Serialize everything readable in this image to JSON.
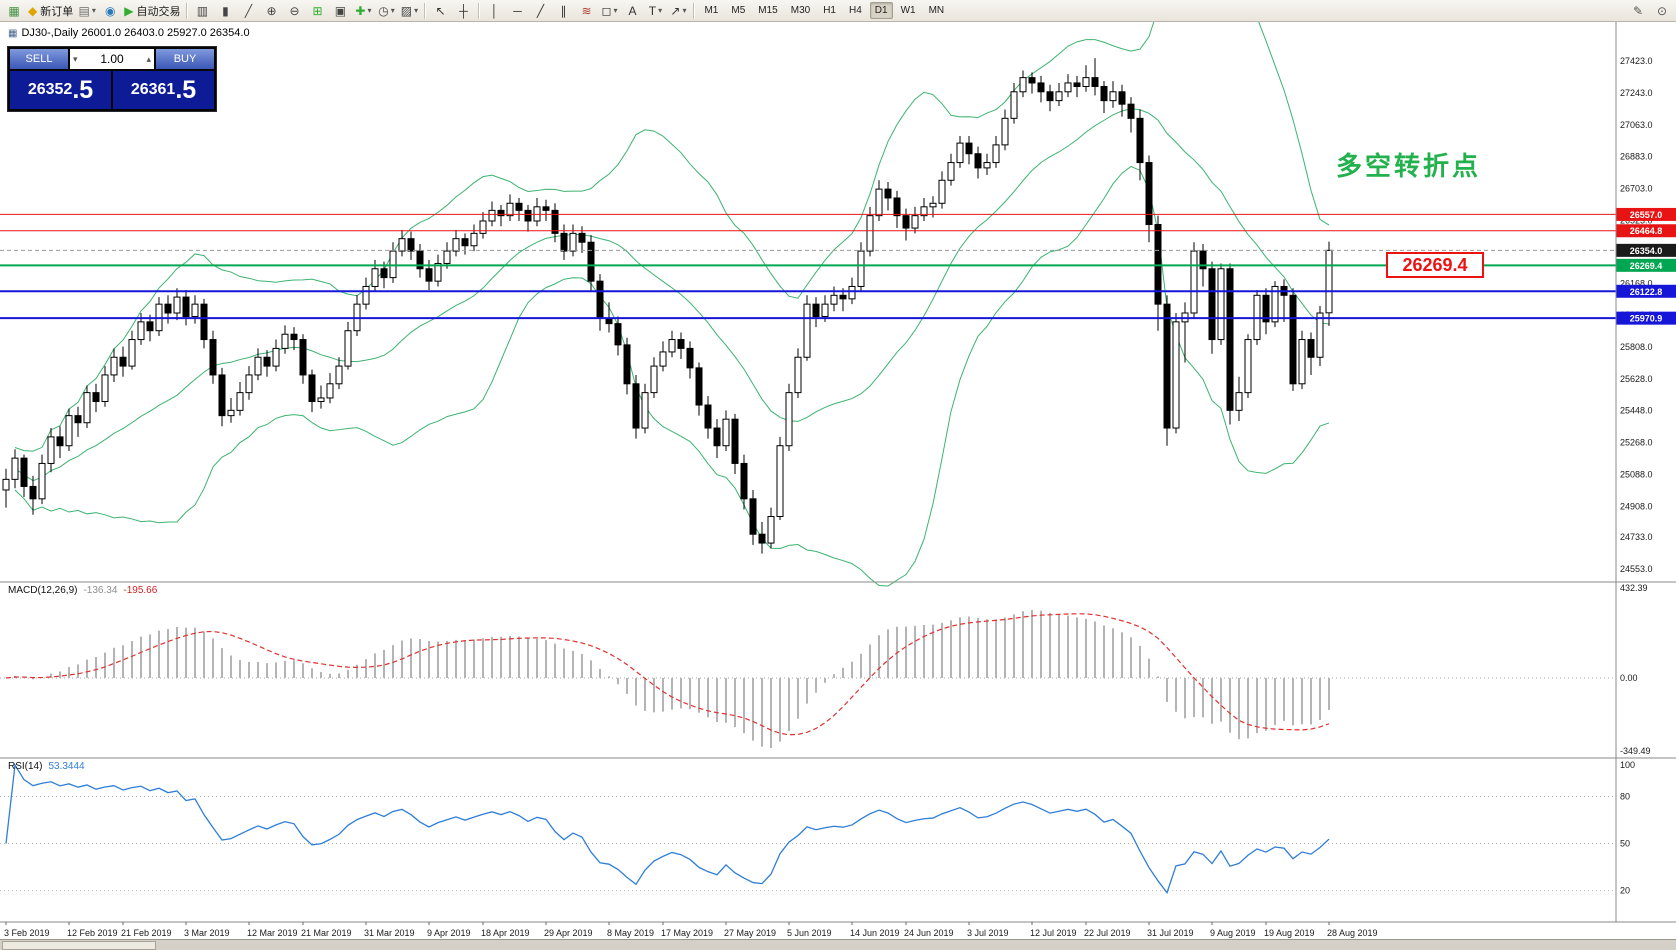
{
  "toolbar": {
    "items": [
      {
        "name": "new-chart-button",
        "glyph": "▦",
        "color": "#3f8f3f"
      },
      {
        "name": "new-order-button",
        "glyph": "◆",
        "color": "#e0a500",
        "label": "新订单"
      },
      {
        "name": "chart-profiles-button",
        "glyph": "▤",
        "color": "#707070",
        "dd": true
      },
      {
        "name": "community-button",
        "glyph": "◉",
        "color": "#2a7ab8"
      },
      {
        "name": "auto-trading-button",
        "glyph": "▶",
        "color": "#2fae2f",
        "label": "自动交易"
      },
      {
        "sep": true
      },
      {
        "name": "bars-mode-button",
        "glyph": "▥",
        "color": "#444444"
      },
      {
        "name": "candles-mode-button",
        "glyph": "▮",
        "color": "#444444"
      },
      {
        "name": "line-mode-button",
        "glyph": "╱",
        "color": "#444444"
      },
      {
        "name": "zoom-in-button",
        "glyph": "⊕",
        "color": "#444444"
      },
      {
        "name": "zoom-out-button",
        "glyph": "⊖",
        "color": "#444444"
      },
      {
        "name": "tile-windows-button",
        "glyph": "⊞",
        "color": "#2fae2f"
      },
      {
        "name": "arrange-windows-button",
        "glyph": "▣",
        "color": "#444444"
      },
      {
        "name": "indicators-button",
        "glyph": "✚",
        "color": "#2fae2f",
        "dd": true
      },
      {
        "name": "periods-button",
        "glyph": "◷",
        "color": "#444444",
        "dd": true
      },
      {
        "name": "templates-button",
        "glyph": "▨",
        "color": "#444444",
        "dd": true
      },
      {
        "sep": true
      },
      {
        "name": "cursor-button",
        "glyph": "↖",
        "color": "#333333"
      },
      {
        "name": "crosshair-button",
        "glyph": "┼",
        "color": "#333333"
      },
      {
        "sep": true
      },
      {
        "name": "vertical-line-button",
        "glyph": "│",
        "color": "#333333"
      },
      {
        "name": "horizontal-line-button",
        "glyph": "─",
        "color": "#333333"
      },
      {
        "name": "trendline-button",
        "glyph": "╱",
        "color": "#333333"
      },
      {
        "name": "channel-button",
        "glyph": "∥",
        "color": "#333333"
      },
      {
        "name": "fibonacci-button",
        "glyph": "≋",
        "color": "#b04030"
      },
      {
        "name": "shapes-button",
        "glyph": "◻",
        "color": "#333333",
        "dd": true
      },
      {
        "name": "text-button",
        "glyph": "A",
        "color": "#333333"
      },
      {
        "name": "text-label-button",
        "glyph": "T",
        "color": "#333333",
        "dd": true
      },
      {
        "name": "arrows-button",
        "glyph": "↗",
        "color": "#333333",
        "dd": true
      },
      {
        "sep": true
      }
    ],
    "timeframes": [
      "M1",
      "M5",
      "M15",
      "M30",
      "H1",
      "H4",
      "D1",
      "W1",
      "MN"
    ],
    "active_timeframe": "D1",
    "right_items": [
      {
        "name": "pencil-button",
        "glyph": "✎",
        "color": "#555555"
      },
      {
        "name": "inspect-button",
        "glyph": "⊙",
        "color": "#555555"
      }
    ]
  },
  "chart": {
    "title_line": "DJ30-,Daily 26001.0 26403.0 25927.0 26354.0",
    "annotation": {
      "text": "多空转折点",
      "color": "#22b14c"
    },
    "price_label_box": {
      "text": "26269.4",
      "color": "#ee1111"
    },
    "axis": {
      "ticks": [
        "27423.0",
        "27243.0",
        "27063.0",
        "26883.0",
        "26703.0",
        "26523.0",
        "26343.0",
        "26168.0",
        "25988.0",
        "25808.0",
        "25628.0",
        "25448.0",
        "25268.0",
        "25088.0",
        "24908.0",
        "24733.0",
        "24553.0"
      ]
    },
    "right_tags": [
      {
        "text": "26557.0",
        "price": 26557.0,
        "color": "#e81414",
        "line": true,
        "width": 1
      },
      {
        "text": "26464.8",
        "price": 26464.8,
        "color": "#e81414",
        "line": true,
        "width": 1
      },
      {
        "text": "26354.0",
        "price": 26354.0,
        "color": "#1a1a1a",
        "line": true,
        "dash": true,
        "line_color": "#999999",
        "width": 1
      },
      {
        "text": "26269.4",
        "price": 26269.4,
        "color": "#00a651",
        "line": true,
        "width": 2
      },
      {
        "text": "26122.8",
        "price": 26122.8,
        "color": "#1616d8",
        "line": true,
        "width": 2
      },
      {
        "text": "25970.9",
        "price": 25970.9,
        "color": "#1616d8",
        "line": true,
        "width": 2
      }
    ]
  },
  "trade_panel": {
    "sell_label": "SELL",
    "buy_label": "BUY",
    "volume": "1.00",
    "sell_price": "26352.5",
    "buy_price": "26361.5",
    "sell_main": "26352",
    "sell_pip": ".5",
    "buy_main": "26361",
    "buy_pip": ".5"
  },
  "chart_data": {
    "type": "candlestick",
    "symbol": "DJ30-",
    "timeframe": "Daily",
    "current_bar": {
      "open": 26001.0,
      "high": 26403.0,
      "low": 25927.0,
      "close": 26354.0
    },
    "ylim": [
      24480,
      27650
    ],
    "candles": [
      [
        25000,
        25120,
        24900,
        25060
      ],
      [
        25060,
        25230,
        25010,
        25180
      ],
      [
        25180,
        25200,
        24960,
        25020
      ],
      [
        25020,
        25080,
        24860,
        24950
      ],
      [
        24950,
        25200,
        24920,
        25150
      ],
      [
        25150,
        25350,
        25100,
        25300
      ],
      [
        25300,
        25360,
        25180,
        25250
      ],
      [
        25250,
        25460,
        25220,
        25420
      ],
      [
        25420,
        25470,
        25300,
        25380
      ],
      [
        25380,
        25590,
        25350,
        25550
      ],
      [
        25550,
        25600,
        25440,
        25500
      ],
      [
        25500,
        25700,
        25470,
        25650
      ],
      [
        25650,
        25800,
        25610,
        25750
      ],
      [
        25750,
        25810,
        25640,
        25700
      ],
      [
        25700,
        25900,
        25680,
        25850
      ],
      [
        25850,
        26000,
        25820,
        25950
      ],
      [
        25950,
        25990,
        25840,
        25900
      ],
      [
        25900,
        26090,
        25870,
        26050
      ],
      [
        26050,
        26100,
        25940,
        26000
      ],
      [
        26000,
        26140,
        25960,
        26090
      ],
      [
        26090,
        26130,
        25930,
        25980
      ],
      [
        25980,
        26100,
        25940,
        26050
      ],
      [
        26050,
        26080,
        25800,
        25850
      ],
      [
        25850,
        25900,
        25600,
        25650
      ],
      [
        25650,
        25690,
        25360,
        25420
      ],
      [
        25420,
        25520,
        25380,
        25450
      ],
      [
        25450,
        25610,
        25420,
        25550
      ],
      [
        25550,
        25700,
        25510,
        25650
      ],
      [
        25650,
        25800,
        25620,
        25750
      ],
      [
        25750,
        25790,
        25640,
        25700
      ],
      [
        25700,
        25850,
        25670,
        25800
      ],
      [
        25800,
        25930,
        25770,
        25880
      ],
      [
        25880,
        25920,
        25790,
        25850
      ],
      [
        25850,
        25880,
        25600,
        25650
      ],
      [
        25650,
        25680,
        25440,
        25500
      ],
      [
        25500,
        25590,
        25460,
        25520
      ],
      [
        25520,
        25660,
        25490,
        25600
      ],
      [
        25600,
        25750,
        25570,
        25700
      ],
      [
        25700,
        25950,
        25680,
        25900
      ],
      [
        25900,
        26100,
        25870,
        26050
      ],
      [
        26050,
        26200,
        26020,
        26150
      ],
      [
        26150,
        26300,
        26120,
        26250
      ],
      [
        26250,
        26290,
        26140,
        26200
      ],
      [
        26200,
        26400,
        26170,
        26350
      ],
      [
        26350,
        26470,
        26320,
        26420
      ],
      [
        26420,
        26460,
        26300,
        26350
      ],
      [
        26350,
        26390,
        26200,
        26250
      ],
      [
        26250,
        26300,
        26130,
        26180
      ],
      [
        26180,
        26330,
        26150,
        26280
      ],
      [
        26280,
        26400,
        26250,
        26350
      ],
      [
        26350,
        26470,
        26320,
        26420
      ],
      [
        26420,
        26450,
        26330,
        26380
      ],
      [
        26380,
        26500,
        26350,
        26450
      ],
      [
        26450,
        26570,
        26420,
        26520
      ],
      [
        26520,
        26630,
        26490,
        26580
      ],
      [
        26580,
        26610,
        26490,
        26550
      ],
      [
        26550,
        26670,
        26520,
        26620
      ],
      [
        26620,
        26650,
        26520,
        26580
      ],
      [
        26580,
        26610,
        26460,
        26520
      ],
      [
        26520,
        26650,
        26490,
        26600
      ],
      [
        26600,
        26640,
        26520,
        26580
      ],
      [
        26580,
        26620,
        26400,
        26450
      ],
      [
        26450,
        26500,
        26300,
        26350
      ],
      [
        26350,
        26500,
        26320,
        26450
      ],
      [
        26450,
        26490,
        26340,
        26400
      ],
      [
        26400,
        26440,
        26120,
        26180
      ],
      [
        26180,
        26220,
        25900,
        25970
      ],
      [
        25970,
        26060,
        25890,
        25940
      ],
      [
        25940,
        25980,
        25760,
        25820
      ],
      [
        25820,
        25860,
        25540,
        25600
      ],
      [
        25600,
        25650,
        25290,
        25350
      ],
      [
        25350,
        25600,
        25320,
        25550
      ],
      [
        25550,
        25750,
        25520,
        25700
      ],
      [
        25700,
        25840,
        25670,
        25780
      ],
      [
        25780,
        25900,
        25750,
        25850
      ],
      [
        25850,
        25890,
        25740,
        25800
      ],
      [
        25800,
        25840,
        25630,
        25690
      ],
      [
        25690,
        25720,
        25420,
        25480
      ],
      [
        25480,
        25530,
        25290,
        25350
      ],
      [
        25350,
        25400,
        25180,
        25250
      ],
      [
        25250,
        25450,
        25220,
        25400
      ],
      [
        25400,
        25430,
        25090,
        25150
      ],
      [
        25150,
        25200,
        24890,
        24950
      ],
      [
        24950,
        25000,
        24690,
        24750
      ],
      [
        24750,
        24820,
        24640,
        24700
      ],
      [
        24700,
        24900,
        24670,
        24850
      ],
      [
        24850,
        25300,
        24830,
        25250
      ],
      [
        25250,
        25600,
        25220,
        25550
      ],
      [
        25550,
        25800,
        25520,
        25750
      ],
      [
        25750,
        26100,
        25730,
        26050
      ],
      [
        26050,
        26090,
        25920,
        25980
      ],
      [
        25980,
        26100,
        25950,
        26050
      ],
      [
        26050,
        26150,
        26010,
        26100
      ],
      [
        26100,
        26140,
        26010,
        26080
      ],
      [
        26080,
        26200,
        26050,
        26150
      ],
      [
        26150,
        26400,
        26120,
        26350
      ],
      [
        26350,
        26600,
        26320,
        26550
      ],
      [
        26550,
        26750,
        26520,
        26700
      ],
      [
        26700,
        26740,
        26580,
        26650
      ],
      [
        26650,
        26690,
        26480,
        26550
      ],
      [
        26550,
        26590,
        26410,
        26480
      ],
      [
        26480,
        26600,
        26450,
        26550
      ],
      [
        26550,
        26650,
        26520,
        26600
      ],
      [
        26600,
        26660,
        26540,
        26620
      ],
      [
        26620,
        26800,
        26590,
        26750
      ],
      [
        26750,
        26900,
        26720,
        26850
      ],
      [
        26850,
        27000,
        26820,
        26960
      ],
      [
        26960,
        27000,
        26840,
        26900
      ],
      [
        26900,
        26940,
        26760,
        26820
      ],
      [
        26820,
        26900,
        26780,
        26850
      ],
      [
        26850,
        27000,
        26820,
        26950
      ],
      [
        26950,
        27150,
        26920,
        27100
      ],
      [
        27100,
        27300,
        27070,
        27250
      ],
      [
        27250,
        27370,
        27220,
        27330
      ],
      [
        27330,
        27360,
        27240,
        27300
      ],
      [
        27300,
        27340,
        27190,
        27250
      ],
      [
        27250,
        27290,
        27140,
        27200
      ],
      [
        27200,
        27300,
        27170,
        27250
      ],
      [
        27250,
        27350,
        27220,
        27300
      ],
      [
        27300,
        27340,
        27220,
        27280
      ],
      [
        27280,
        27400,
        27250,
        27330
      ],
      [
        27330,
        27440,
        27230,
        27280
      ],
      [
        27280,
        27310,
        27130,
        27200
      ],
      [
        27200,
        27310,
        27160,
        27250
      ],
      [
        27250,
        27290,
        27110,
        27180
      ],
      [
        27180,
        27220,
        27020,
        27100
      ],
      [
        27100,
        27150,
        26750,
        26850
      ],
      [
        26850,
        26890,
        26400,
        26500
      ],
      [
        26500,
        26550,
        25900,
        26050
      ],
      [
        26050,
        26100,
        25250,
        25350
      ],
      [
        25350,
        26000,
        25320,
        25950
      ],
      [
        25950,
        26060,
        25720,
        26000
      ],
      [
        26000,
        26400,
        25970,
        26350
      ],
      [
        26350,
        26390,
        26150,
        26250
      ],
      [
        26250,
        26290,
        25770,
        25850
      ],
      [
        25850,
        26280,
        25820,
        26250
      ],
      [
        26250,
        26280,
        25370,
        25450
      ],
      [
        25450,
        25640,
        25390,
        25550
      ],
      [
        25550,
        25880,
        25520,
        25850
      ],
      [
        25850,
        26130,
        25820,
        26100
      ],
      [
        26100,
        26140,
        25880,
        25950
      ],
      [
        25950,
        26180,
        25920,
        26150
      ],
      [
        26150,
        26190,
        25950,
        26100
      ],
      [
        26100,
        26140,
        25560,
        25600
      ],
      [
        25600,
        25900,
        25570,
        25850
      ],
      [
        25850,
        25890,
        25650,
        25750
      ],
      [
        25750,
        26040,
        25700,
        26000
      ],
      [
        26001,
        26403,
        25927,
        26354
      ]
    ],
    "x_ticks": {
      "labels": [
        "3 Feb 2019",
        "12 Feb 2019",
        "21 Feb 2019",
        "3 Mar 2019",
        "12 Mar 2019",
        "21 Mar 2019",
        "31 Mar 2019",
        "9 Apr 2019",
        "18 Apr 2019",
        "29 Apr 2019",
        "8 May 2019",
        "17 May 2019",
        "27 May 2019",
        "5 Jun 2019",
        "14 Jun 2019",
        "24 Jun 2019",
        "3 Jul 2019",
        "12 Jul 2019",
        "22 Jul 2019",
        "31 Jul 2019",
        "9 Aug 2019",
        "19 Aug 2019",
        "28 Aug 2019"
      ],
      "bars": [
        0,
        7,
        13,
        20,
        27,
        33,
        40,
        47,
        53,
        60,
        67,
        73,
        80,
        87,
        94,
        100,
        107,
        114,
        120,
        127,
        134,
        140,
        147
      ]
    },
    "indicators": {
      "bollinger": {
        "period": 20,
        "deviation": 2,
        "color": "#3cb371"
      },
      "macd": {
        "label": "MACD(12,26,9)",
        "value": "-136.34",
        "signal": "-195.66",
        "axis": [
          "432.39",
          "0.00",
          "-349.49"
        ],
        "ylim": [
          -384,
          461
        ]
      },
      "rsi": {
        "label": "RSI(14)",
        "value": "53.3444",
        "axis": [
          "100",
          "80",
          "50",
          "20"
        ],
        "levels": [
          80,
          50,
          20
        ],
        "ylim": [
          0,
          104.5
        ]
      }
    }
  },
  "colors": {
    "bull": "#ffffff",
    "bear": "#000000",
    "wick": "#000000",
    "macd_hist": "#b4b4b4",
    "macd_signal": "#e03131",
    "rsi_line": "#2f7ed8"
  }
}
